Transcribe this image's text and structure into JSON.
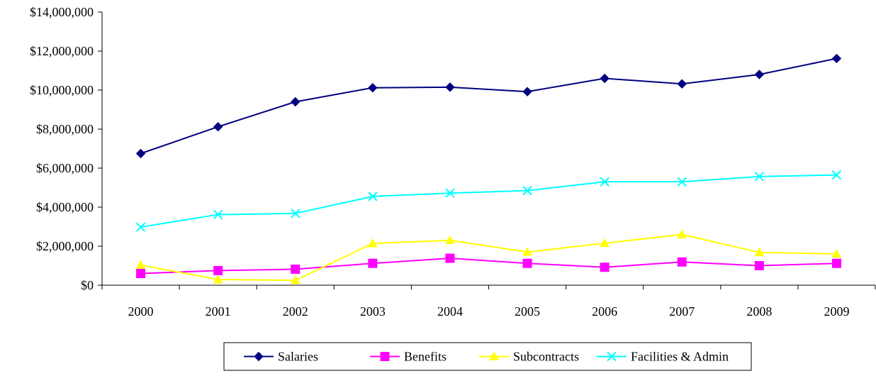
{
  "chart_data": {
    "type": "line",
    "title": "",
    "xlabel": "",
    "ylabel": "",
    "categories": [
      "2000",
      "2001",
      "2002",
      "2003",
      "2004",
      "2005",
      "2006",
      "2007",
      "2008",
      "2009"
    ],
    "ylim": [
      0,
      14000000
    ],
    "yticks": [
      0,
      2000000,
      4000000,
      6000000,
      8000000,
      10000000,
      12000000,
      14000000
    ],
    "ytick_labels": [
      "$0",
      "$2,000,000",
      "$4,000,000",
      "$6,000,000",
      "$8,000,000",
      "$10,000,000",
      "$12,000,000",
      "$14,000,000"
    ],
    "grid": false,
    "legend_position": "bottom",
    "series": [
      {
        "name": "Salaries",
        "color": "#000080",
        "marker": "diamond",
        "values": [
          6750000,
          8120000,
          9400000,
          10120000,
          10150000,
          9920000,
          10600000,
          10320000,
          10800000,
          11620000
        ]
      },
      {
        "name": "Benefits",
        "color": "#ff00ff",
        "marker": "square",
        "values": [
          600000,
          750000,
          820000,
          1120000,
          1380000,
          1120000,
          920000,
          1190000,
          1000000,
          1120000
        ]
      },
      {
        "name": "Subcontracts",
        "color": "#ffff00",
        "marker": "triangle",
        "values": [
          1030000,
          290000,
          250000,
          2140000,
          2300000,
          1700000,
          2150000,
          2600000,
          1680000,
          1600000
        ]
      },
      {
        "name": "Facilities & Admin",
        "color": "#00ffff",
        "marker": "x",
        "values": [
          2980000,
          3620000,
          3680000,
          4550000,
          4720000,
          4850000,
          5300000,
          5300000,
          5570000,
          5650000
        ]
      }
    ]
  }
}
